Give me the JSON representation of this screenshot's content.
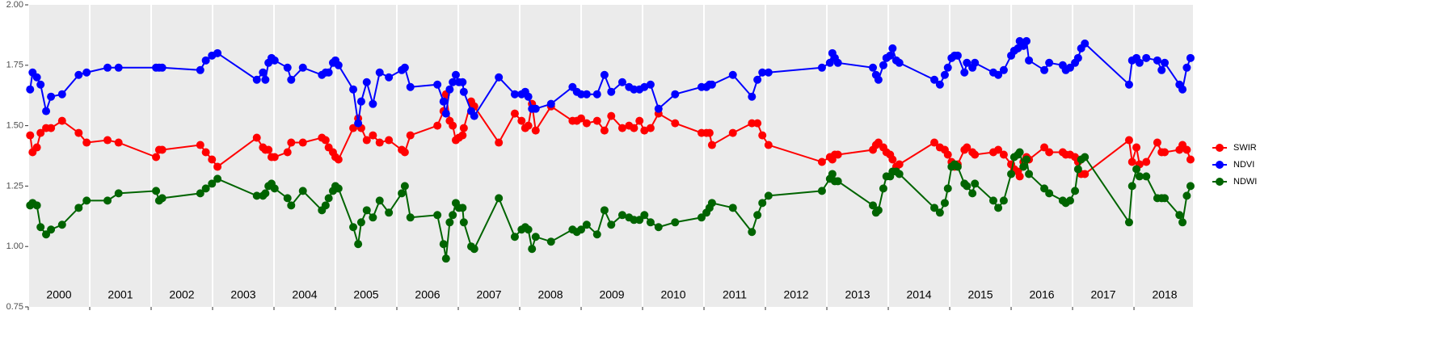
{
  "chart_data": {
    "type": "line",
    "x": [
      2000.03,
      2000.07,
      2000.14,
      2000.2,
      2000.29,
      2000.37,
      2000.55,
      2000.82,
      2000.95,
      2001.29,
      2001.47,
      2002.08,
      2002.13,
      2002.18,
      2002.8,
      2002.89,
      2002.99,
      2003.08,
      2003.72,
      2003.82,
      2003.86,
      2003.91,
      2003.96,
      2004.01,
      2004.22,
      2004.28,
      2004.47,
      2004.78,
      2004.84,
      2004.89,
      2004.96,
      2005.0,
      2005.05,
      2005.29,
      2005.37,
      2005.42,
      2005.51,
      2005.61,
      2005.72,
      2005.87,
      2006.08,
      2006.13,
      2006.22,
      2006.66,
      2006.76,
      2006.8,
      2006.86,
      2006.91,
      2006.96,
      2007.01,
      2007.07,
      2007.09,
      2007.21,
      2007.26,
      2007.66,
      2007.92,
      2008.03,
      2008.09,
      2008.14,
      2008.2,
      2008.26,
      2008.51,
      2008.86,
      2008.93,
      2009.0,
      2009.09,
      2009.26,
      2009.38,
      2009.49,
      2009.67,
      2009.78,
      2009.86,
      2009.95,
      2010.03,
      2010.13,
      2010.26,
      2010.53,
      2010.96,
      2011.04,
      2011.09,
      2011.13,
      2011.47,
      2011.78,
      2011.87,
      2011.95,
      2012.05,
      2012.92,
      2013.05,
      2013.09,
      2013.13,
      2013.18,
      2013.75,
      2013.8,
      2013.84,
      2013.92,
      2013.97,
      2014.03,
      2014.07,
      2014.13,
      2014.18,
      2014.75,
      2014.84,
      2014.92,
      2014.97,
      2015.03,
      2015.08,
      2015.13,
      2015.24,
      2015.28,
      2015.37,
      2015.41,
      2015.71,
      2015.79,
      2015.88,
      2016.0,
      2016.05,
      2016.11,
      2016.14,
      2016.2,
      2016.25,
      2016.29,
      2016.54,
      2016.62,
      2016.84,
      2016.89,
      2016.96,
      2017.04,
      2017.09,
      2017.14,
      2017.2,
      2017.92,
      2017.97,
      2018.04,
      2018.09,
      2018.2,
      2018.38,
      2018.45,
      2018.5,
      2018.74,
      2018.79,
      2018.86,
      2018.92
    ],
    "series": [
      {
        "name": "SWIR",
        "color": "#ff0000",
        "values": [
          1.46,
          1.39,
          1.41,
          1.47,
          1.49,
          1.49,
          1.52,
          1.47,
          1.43,
          1.44,
          1.43,
          1.37,
          1.4,
          1.4,
          1.42,
          1.39,
          1.36,
          1.33,
          1.45,
          1.41,
          1.4,
          1.4,
          1.37,
          1.37,
          1.39,
          1.43,
          1.43,
          1.45,
          1.44,
          1.41,
          1.39,
          1.37,
          1.36,
          1.49,
          1.53,
          1.49,
          1.44,
          1.46,
          1.43,
          1.44,
          1.4,
          1.39,
          1.46,
          1.5,
          1.56,
          1.63,
          1.52,
          1.5,
          1.44,
          1.45,
          1.46,
          1.49,
          1.6,
          1.58,
          1.43,
          1.55,
          1.52,
          1.49,
          1.5,
          1.59,
          1.48,
          1.58,
          1.52,
          1.52,
          1.53,
          1.51,
          1.52,
          1.48,
          1.54,
          1.49,
          1.5,
          1.49,
          1.52,
          1.48,
          1.49,
          1.55,
          1.51,
          1.47,
          1.47,
          1.47,
          1.42,
          1.47,
          1.51,
          1.51,
          1.46,
          1.42,
          1.35,
          1.37,
          1.36,
          1.38,
          1.38,
          1.4,
          1.42,
          1.43,
          1.41,
          1.39,
          1.38,
          1.36,
          1.33,
          1.34,
          1.43,
          1.41,
          1.4,
          1.38,
          1.35,
          1.33,
          1.34,
          1.4,
          1.41,
          1.39,
          1.38,
          1.39,
          1.4,
          1.38,
          1.34,
          1.32,
          1.31,
          1.29,
          1.35,
          1.37,
          1.36,
          1.41,
          1.39,
          1.39,
          1.38,
          1.38,
          1.37,
          1.35,
          1.3,
          1.3,
          1.44,
          1.35,
          1.41,
          1.34,
          1.35,
          1.43,
          1.39,
          1.39,
          1.4,
          1.42,
          1.4,
          1.36
        ]
      },
      {
        "name": "NDVI",
        "color": "#0000ff",
        "values": [
          1.65,
          1.72,
          1.7,
          1.67,
          1.56,
          1.62,
          1.63,
          1.71,
          1.72,
          1.74,
          1.74,
          1.74,
          1.74,
          1.74,
          1.73,
          1.77,
          1.79,
          1.8,
          1.69,
          1.72,
          1.69,
          1.76,
          1.78,
          1.77,
          1.74,
          1.69,
          1.74,
          1.71,
          1.72,
          1.72,
          1.76,
          1.77,
          1.75,
          1.65,
          1.51,
          1.6,
          1.68,
          1.59,
          1.72,
          1.7,
          1.73,
          1.74,
          1.66,
          1.67,
          1.6,
          1.55,
          1.65,
          1.68,
          1.71,
          1.68,
          1.68,
          1.64,
          1.56,
          1.54,
          1.7,
          1.63,
          1.63,
          1.64,
          1.62,
          1.57,
          1.57,
          1.59,
          1.66,
          1.64,
          1.63,
          1.63,
          1.63,
          1.71,
          1.64,
          1.68,
          1.66,
          1.65,
          1.65,
          1.66,
          1.67,
          1.57,
          1.63,
          1.66,
          1.66,
          1.67,
          1.67,
          1.71,
          1.62,
          1.69,
          1.72,
          1.72,
          1.74,
          1.76,
          1.8,
          1.78,
          1.76,
          1.74,
          1.71,
          1.69,
          1.75,
          1.78,
          1.79,
          1.82,
          1.77,
          1.76,
          1.69,
          1.67,
          1.71,
          1.74,
          1.78,
          1.79,
          1.79,
          1.72,
          1.76,
          1.74,
          1.76,
          1.72,
          1.71,
          1.73,
          1.79,
          1.81,
          1.82,
          1.85,
          1.83,
          1.85,
          1.77,
          1.73,
          1.76,
          1.75,
          1.73,
          1.74,
          1.76,
          1.78,
          1.82,
          1.84,
          1.67,
          1.77,
          1.78,
          1.76,
          1.78,
          1.77,
          1.73,
          1.76,
          1.67,
          1.65,
          1.74,
          1.78
        ]
      },
      {
        "name": "NDWI",
        "color": "#006400",
        "values": [
          1.17,
          1.18,
          1.17,
          1.08,
          1.05,
          1.07,
          1.09,
          1.16,
          1.19,
          1.19,
          1.22,
          1.23,
          1.19,
          1.2,
          1.22,
          1.24,
          1.26,
          1.28,
          1.21,
          1.21,
          1.22,
          1.25,
          1.26,
          1.24,
          1.2,
          1.17,
          1.23,
          1.15,
          1.17,
          1.2,
          1.23,
          1.25,
          1.24,
          1.08,
          1.01,
          1.1,
          1.15,
          1.12,
          1.19,
          1.14,
          1.22,
          1.25,
          1.12,
          1.13,
          1.01,
          0.95,
          1.1,
          1.13,
          1.18,
          1.16,
          1.16,
          1.1,
          1.0,
          0.99,
          1.2,
          1.04,
          1.07,
          1.08,
          1.07,
          0.99,
          1.04,
          1.02,
          1.07,
          1.06,
          1.07,
          1.09,
          1.05,
          1.15,
          1.09,
          1.13,
          1.12,
          1.11,
          1.11,
          1.13,
          1.1,
          1.08,
          1.1,
          1.12,
          1.14,
          1.16,
          1.18,
          1.16,
          1.06,
          1.13,
          1.18,
          1.21,
          1.23,
          1.28,
          1.3,
          1.27,
          1.27,
          1.17,
          1.14,
          1.15,
          1.24,
          1.29,
          1.29,
          1.31,
          1.31,
          1.3,
          1.16,
          1.14,
          1.18,
          1.24,
          1.33,
          1.34,
          1.33,
          1.26,
          1.25,
          1.22,
          1.26,
          1.19,
          1.16,
          1.19,
          1.3,
          1.37,
          1.38,
          1.39,
          1.33,
          1.36,
          1.3,
          1.24,
          1.22,
          1.19,
          1.18,
          1.19,
          1.23,
          1.32,
          1.36,
          1.37,
          1.1,
          1.25,
          1.32,
          1.29,
          1.29,
          1.2,
          1.2,
          1.2,
          1.13,
          1.1,
          1.21,
          1.25
        ]
      }
    ],
    "xlim": [
      2000,
      2018.96
    ],
    "xticks": [
      2000,
      2001,
      2002,
      2003,
      2004,
      2005,
      2006,
      2007,
      2008,
      2009,
      2010,
      2011,
      2012,
      2013,
      2014,
      2015,
      2016,
      2017,
      2018
    ],
    "ylim": [
      0.75,
      2
    ],
    "yticks": [
      {
        "value": 0.75,
        "label": "0.75"
      },
      {
        "value": 1,
        "label": "1.00"
      },
      {
        "value": 1.25,
        "label": "1.25"
      },
      {
        "value": 1.5,
        "label": "1.50"
      },
      {
        "value": 1.75,
        "label": "1.75"
      },
      {
        "value": 2,
        "label": "2.00"
      }
    ],
    "grid": true,
    "legend": "right"
  }
}
